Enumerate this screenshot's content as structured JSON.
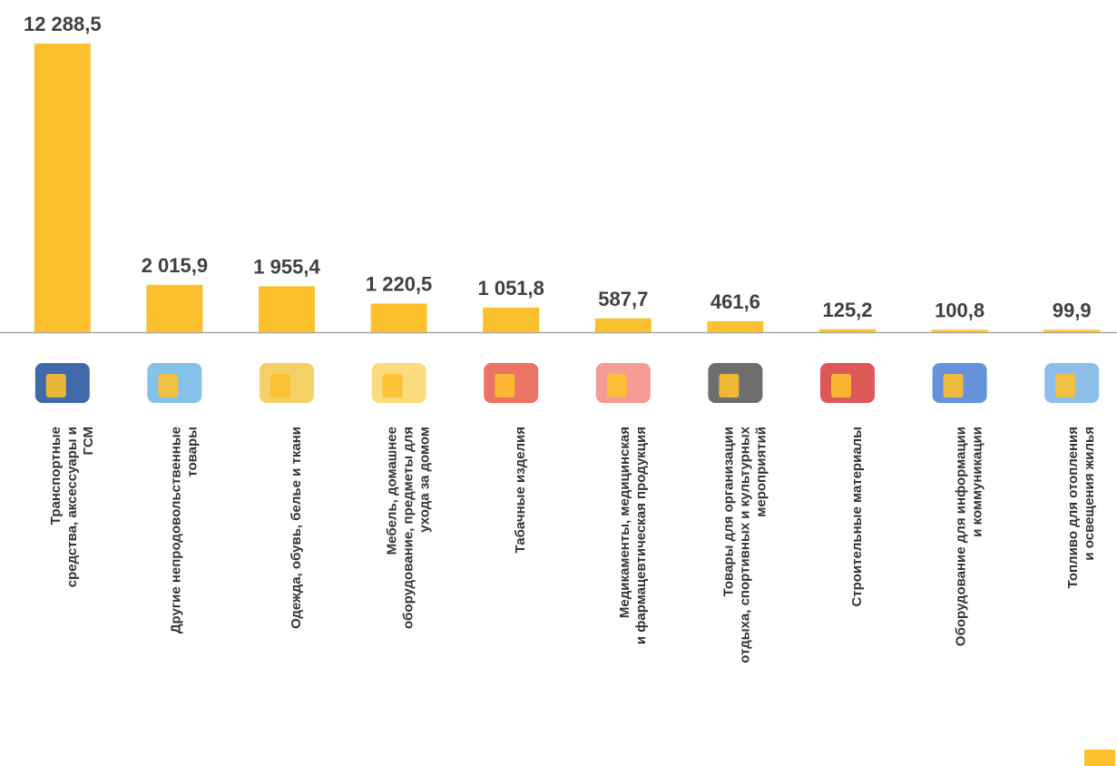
{
  "chart_data": {
    "type": "bar",
    "color": "#fcc02e",
    "categories": [
      [
        "Транспортные",
        "средства, аксессуары  и",
        "ГСМ"
      ],
      [
        "Другие непродовольственные",
        "товары"
      ],
      [
        "Одежда, обувь, белье и ткани"
      ],
      [
        "Мебель, домашнее",
        "оборудование, предметы для",
        "ухода за домом"
      ],
      [
        "Табачные изделия"
      ],
      [
        "Медикаменты, медицинская",
        "и фармацевтическая продукция"
      ],
      [
        "Товары для организации",
        "отдыха, спортивных и культурных",
        "мероприятий"
      ],
      [
        "Строительные материалы"
      ],
      [
        "Оборудование для информации",
        "и коммуникации"
      ],
      [
        "Топливо для отопления",
        "и освещения жилья"
      ]
    ],
    "values": [
      12288.5,
      2015.9,
      1955.4,
      1220.5,
      1051.8,
      587.7,
      461.6,
      125.2,
      100.8,
      99.9
    ],
    "value_labels": [
      "12 288,5",
      "2 015,9",
      "1 955,4",
      "1 220,5",
      "1 051,8",
      "587,7",
      "461,6",
      "125,2",
      "100,8",
      "99,9"
    ]
  }
}
